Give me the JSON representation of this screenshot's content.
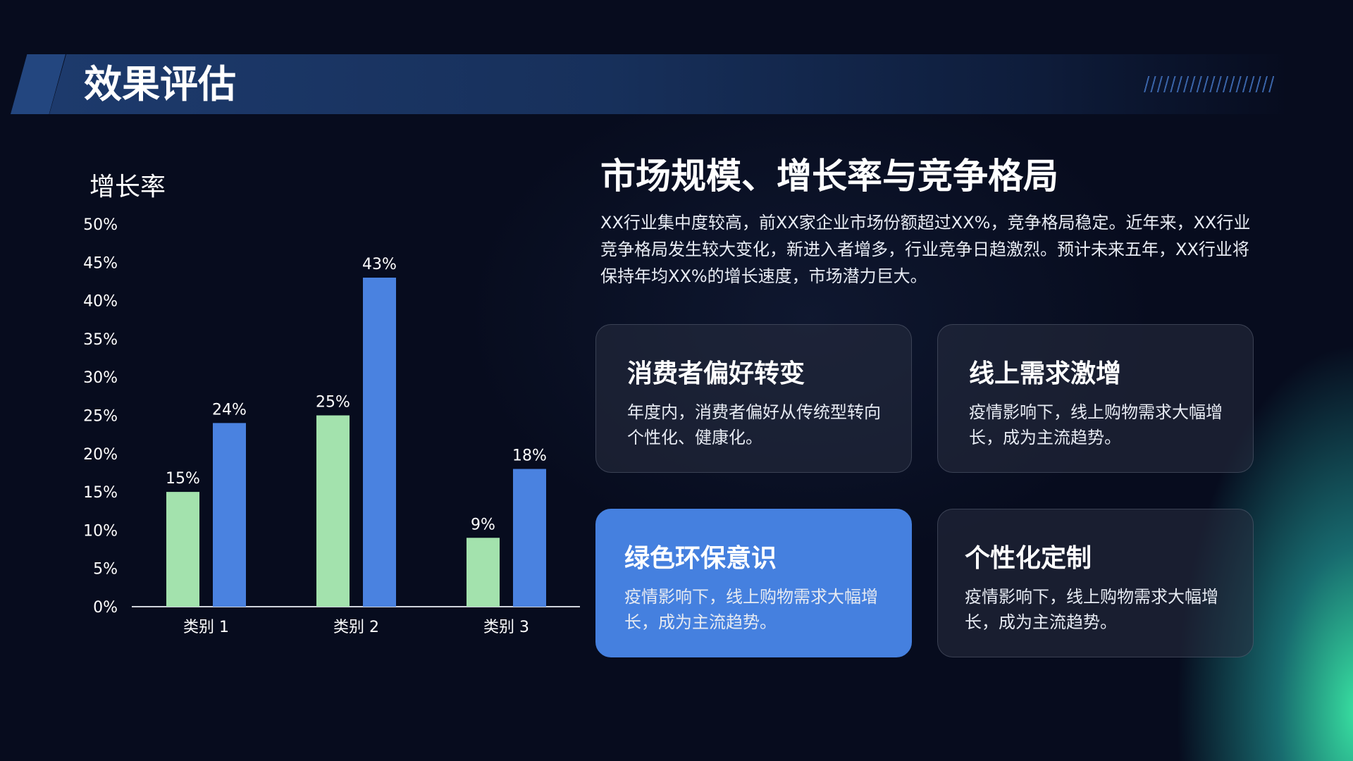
{
  "header": {
    "title": "效果评估"
  },
  "chart_data": {
    "type": "bar",
    "title": "增长率",
    "categories": [
      "类别 1",
      "类别 2",
      "类别 3"
    ],
    "series": [
      {
        "values": [
          15,
          25,
          9
        ],
        "color": "#a3e2ad"
      },
      {
        "values": [
          24,
          43,
          18
        ],
        "color": "#4a82e0"
      }
    ],
    "data_labels": [
      [
        "15%",
        "25%",
        "9%"
      ],
      [
        "24%",
        "43%",
        "18%"
      ]
    ],
    "yticks": [
      "0%",
      "5%",
      "10%",
      "15%",
      "20%",
      "25%",
      "30%",
      "35%",
      "40%",
      "45%",
      "50%"
    ],
    "ylim": [
      0,
      50
    ],
    "grid": false
  },
  "main": {
    "title": "市场规模、增长率与竞争格局",
    "paragraph": "XX行业集中度较高，前XX家企业市场份额超过XX%，竞争格局稳定。近年来，XX行业竞争格局发生较大变化，新进入者增多，行业竞争日趋激烈。预计未来五年，XX行业将保持年均XX%的增长速度，市场潜力巨大。",
    "cards": [
      {
        "title": "消费者偏好转变",
        "text": "年度内，消费者偏好从传统型转向个性化、健康化。"
      },
      {
        "title": "线上需求激增",
        "text": "疫情影响下，线上购物需求大幅增长，成为主流趋势。"
      },
      {
        "title": "绿色环保意识",
        "text": "疫情影响下，线上购物需求大幅增长，成为主流趋势。",
        "highlight": true
      },
      {
        "title": "个性化定制",
        "text": "疫情影响下，线上购物需求大幅增长，成为主流趋势。"
      }
    ]
  },
  "colors": {
    "accent": "#4580df",
    "green": "#a3e2ad",
    "background": "#070c1e"
  }
}
